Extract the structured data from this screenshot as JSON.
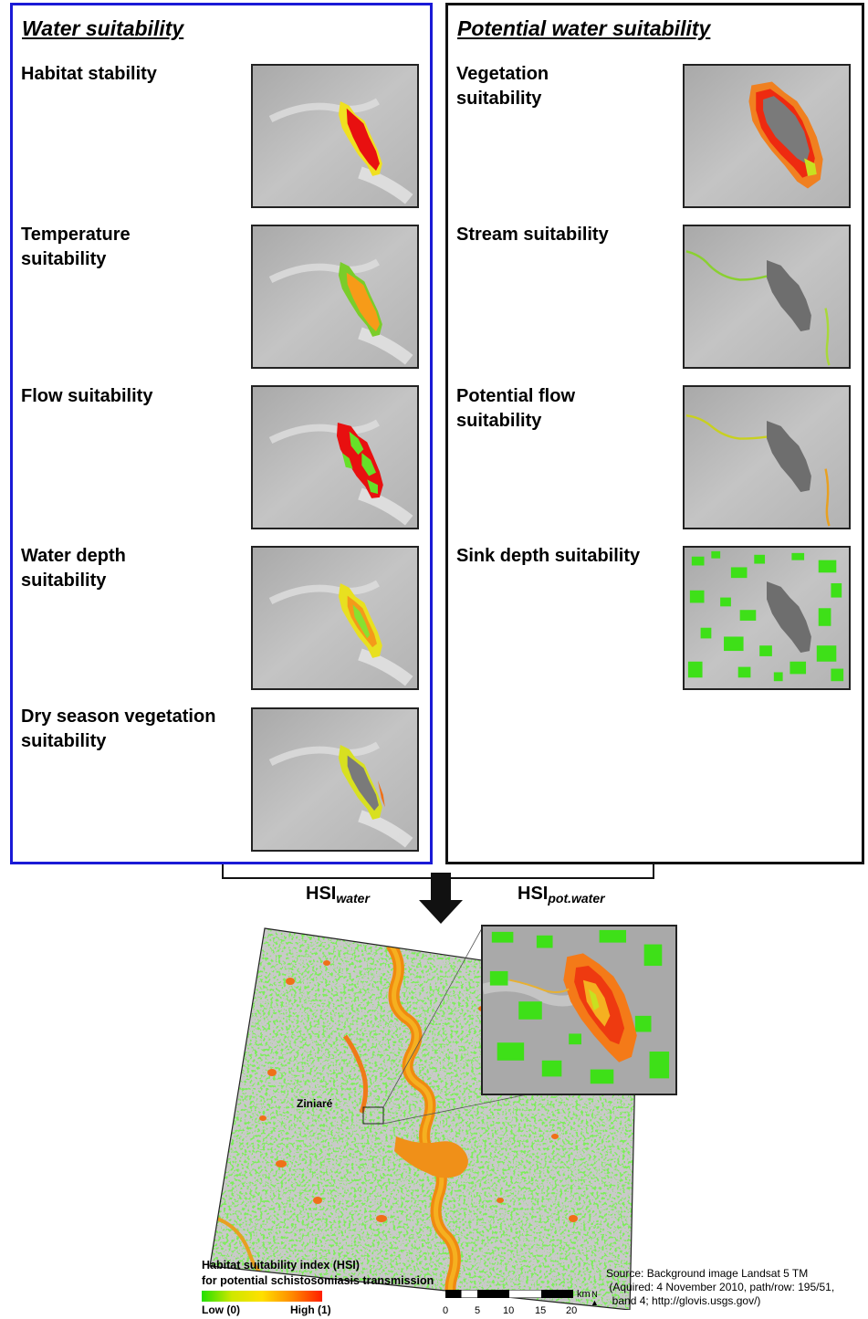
{
  "panels": {
    "water": {
      "title": "Water suitability",
      "border_color": "#1a1ad6",
      "layers": [
        {
          "label": "Habitat stability",
          "style": "habitat"
        },
        {
          "label": "Temperature suitability",
          "style": "temperature"
        },
        {
          "label": "Flow suitability",
          "style": "flow"
        },
        {
          "label": "Water depth suitability",
          "style": "depth"
        },
        {
          "label": "Dry season vegetation suitability",
          "style": "dryveg"
        }
      ]
    },
    "potential": {
      "title": "Potential water suitability",
      "border_color": "#111111",
      "layers": [
        {
          "label": "Vegetation suitability",
          "style": "vegetation"
        },
        {
          "label": "Stream suitability",
          "style": "stream"
        },
        {
          "label": "Potential flow suitability",
          "style": "potflow"
        },
        {
          "label": "Sink depth suitability",
          "style": "sink"
        }
      ]
    }
  },
  "combine": {
    "hsi_water_main": "HSI",
    "hsi_water_sub": "water",
    "hsi_pot_main": "HSI",
    "hsi_pot_sub": "pot.water"
  },
  "map": {
    "place_label": "Ziniaré"
  },
  "legend": {
    "title_line1": "Habitat suitability index (HSI)",
    "title_line2": "for potential schistosomiasis transmission",
    "low_label": "Low (0)",
    "high_label": "High (1)",
    "colors": [
      "#22e000",
      "#cfe800",
      "#ffe000",
      "#ff8a00",
      "#ff1d00"
    ]
  },
  "scale_bar": {
    "ticks": [
      "0",
      "5",
      "10",
      "15",
      "20"
    ],
    "unit": "km",
    "north": "N"
  },
  "source": {
    "line1": "Source: Background image Landsat 5 TM",
    "line2": " (Aquired: 4 November 2010, path/row: 195/51,",
    "line3": "  band 4; http://glovis.usgs.gov/)"
  }
}
